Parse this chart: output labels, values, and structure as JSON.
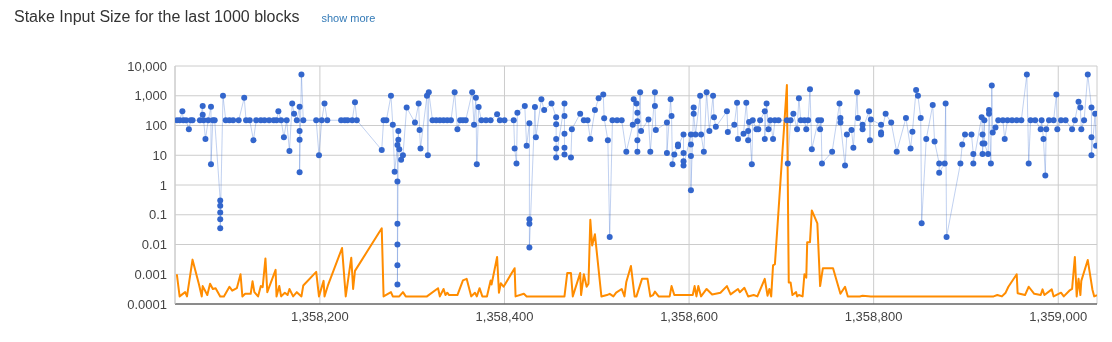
{
  "chart_data": {
    "type": "line",
    "title": "Stake Input Size for the last 1000 blocks",
    "annotations": [
      "show more"
    ],
    "log": "y",
    "grid": true,
    "xlim": [
      1358043,
      1359042
    ],
    "xticks": [
      {
        "value": 1358200,
        "label": "1,358,200"
      },
      {
        "value": 1358400,
        "label": "1,358,400"
      },
      {
        "value": 1358600,
        "label": "1,358,600"
      },
      {
        "value": 1358800,
        "label": "1,358,800"
      },
      {
        "value": 1359000,
        "label": "1,359,000"
      }
    ],
    "ylim": [
      0.0001,
      10000
    ],
    "yticks": [
      0.0001,
      0.001,
      0.01,
      0.1,
      1,
      10,
      100,
      {
        "value": 1000,
        "label": "1,000"
      },
      {
        "value": 10000,
        "label": "10,000"
      }
    ],
    "series": [
      {
        "color": "#3366cc",
        "marker": "circle",
        "x": [
          1358045,
          1358048,
          1358051,
          1358052,
          1358055,
          1358058,
          1358060,
          1358062,
          1358070,
          1358073,
          1358073,
          1358074,
          1358076,
          1358079,
          1358082,
          1358082,
          1358084,
          1358086,
          1358092,
          1358092,
          1358092,
          1358092,
          1358092,
          1358095,
          1358098,
          1358102,
          1358106,
          1358112,
          1358118,
          1358120,
          1358124,
          1358128,
          1358131,
          1358136,
          1358140,
          1358145,
          1358150,
          1358153,
          1358155,
          1358158,
          1358161,
          1358164,
          1358167,
          1358170,
          1358172,
          1358175,
          1358178,
          1358178,
          1358178,
          1358178,
          1358180,
          1358182,
          1358196,
          1358199,
          1358202,
          1358205,
          1358208,
          1358223,
          1358227,
          1358230,
          1358235,
          1358238,
          1358240,
          1358267,
          1358269,
          1358272,
          1358277,
          1358279,
          1358281,
          1358284,
          1358284,
          1358284,
          1358284,
          1358284,
          1358284,
          1358285,
          1358285,
          1358286,
          1358288,
          1358290,
          1358294,
          1358303,
          1358307,
          1358308,
          1358309,
          1358316,
          1358317,
          1358318,
          1358322,
          1358326,
          1358330,
          1358334,
          1358338,
          1358342,
          1358346,
          1358349,
          1358352,
          1358355,
          1358358,
          1358365,
          1358367,
          1358369,
          1358370,
          1358372,
          1358375,
          1358380,
          1358385,
          1358392,
          1358395,
          1358400,
          1358410,
          1358411,
          1358413,
          1358414,
          1358422,
          1358424,
          1358427,
          1358427,
          1358427,
          1358427,
          1358433,
          1358434,
          1358440,
          1358443,
          1358451,
          1358456,
          1358456,
          1358456,
          1358456,
          1358456,
          1358465,
          1358465,
          1358465,
          1358465,
          1358465,
          1358472,
          1358473,
          1358482,
          1358486,
          1358490,
          1358493,
          1358498,
          1358502,
          1358507,
          1358508,
          1358512,
          1358514,
          1358517,
          1358522,
          1358527,
          1358532,
          1358539,
          1358540,
          1358543,
          1358544,
          1358544,
          1358544,
          1358544,
          1358547,
          1358548,
          1358556,
          1358558,
          1358563,
          1358563,
          1358564,
          1358576,
          1358576,
          1358580,
          1358581,
          1358582,
          1358584,
          1358588,
          1358588,
          1358594,
          1358594,
          1358594,
          1358594,
          1358602,
          1358602,
          1358602,
          1358602,
          1358605,
          1358605,
          1358607,
          1358612,
          1358613,
          1358616,
          1358619,
          1358622,
          1358626,
          1358627,
          1358629,
          1358641,
          1358642,
          1358649,
          1358652,
          1358653,
          1358659,
          1358662,
          1358664,
          1358664,
          1358665,
          1358668,
          1358669,
          1358673,
          1358675,
          1358677,
          1358682,
          1358682,
          1358684,
          1358686,
          1358688,
          1358691,
          1358693,
          1358697,
          1358706,
          1358707,
          1358710,
          1358713,
          1358717,
          1358719,
          1358721,
          1358725,
          1358727,
          1358729,
          1358731,
          1358733,
          1358740,
          1358742,
          1358743,
          1358744,
          1358755,
          1358763,
          1358764,
          1358764,
          1358769,
          1358771,
          1358776,
          1358778,
          1358782,
          1358783,
          1358788,
          1358788,
          1358795,
          1358796,
          1358797,
          1358808,
          1358808,
          1358808,
          1358813,
          1358819,
          1358825,
          1358835,
          1358840,
          1358842,
          1358846,
          1358848,
          1358851,
          1358852,
          1358857,
          1358864,
          1358866,
          1358871,
          1358871,
          1358877,
          1358878,
          1358879,
          1358894,
          1358896,
          1358899,
          1358906,
          1358908,
          1358908,
          1358917,
          1358918,
          1358918,
          1358918,
          1358920,
          1358920,
          1358924,
          1358925,
          1358925,
          1358927,
          1358928,
          1358929,
          1358932,
          1358935,
          1358940,
          1358942,
          1358945,
          1358950,
          1358955,
          1358960,
          1358966,
          1358968,
          1358970,
          1358975,
          1358981,
          1358982,
          1358984,
          1358986,
          1358987,
          1358990,
          1358995,
          1358998,
          1358999,
          1359003,
          1359008,
          1359015,
          1359018,
          1359022,
          1359024,
          1359025,
          1359028,
          1359032,
          1359036,
          1359036,
          1359036,
          1359040,
          1359041
        ],
        "values": [
          150,
          150,
          300,
          150,
          150,
          75,
          150,
          150,
          150,
          450,
          230,
          150,
          35,
          150,
          430,
          5,
          150,
          150,
          0.3,
          0.2,
          0.12,
          0.07,
          0.035,
          1000,
          150,
          150,
          150,
          150,
          850,
          150,
          150,
          32,
          150,
          150,
          150,
          150,
          150,
          150,
          300,
          150,
          40,
          150,
          14,
          550,
          250,
          150,
          430,
          65,
          33,
          2.7,
          5200,
          150,
          150,
          10,
          150,
          550,
          150,
          150,
          150,
          150,
          150,
          600,
          150,
          15,
          150,
          150,
          1000,
          105,
          2.8,
          22,
          1.3,
          0.05,
          0.01,
          0.002,
          0.00045,
          65,
          33,
          16,
          7,
          10,
          400,
          125,
          550,
          70,
          17,
          1000,
          10,
          1300,
          150,
          150,
          150,
          150,
          150,
          150,
          1300,
          75,
          150,
          150,
          150,
          1300,
          105,
          850,
          5,
          420,
          150,
          150,
          150,
          240,
          150,
          150,
          150,
          17,
          5.3,
          270,
          450,
          21,
          120,
          0.07,
          0.05,
          0.008,
          420,
          40,
          760,
          330,
          550,
          190,
          110,
          35,
          17,
          8.4,
          550,
          210,
          53,
          18,
          10.5,
          8.4,
          75,
          250,
          150,
          150,
          35,
          330,
          820,
          1100,
          175,
          32,
          0.018,
          150,
          150,
          150,
          13,
          105,
          760,
          550,
          270,
          140,
          32,
          13,
          1300,
          65,
          160,
          13,
          1300,
          450,
          70,
          125,
          12,
          760,
          210,
          5,
          10.5,
          23,
          20,
          50,
          12,
          6.3,
          4.5,
          50,
          23,
          9.5,
          0.67,
          400,
          250,
          50,
          1000,
          50,
          13,
          1300,
          65,
          1000,
          190,
          90,
          300,
          60,
          105,
          580,
          35,
          53,
          580,
          65,
          32,
          130,
          5,
          150,
          75,
          75,
          150,
          300,
          35,
          550,
          75,
          150,
          35,
          150,
          150,
          150,
          5.3,
          150,
          250,
          75,
          820,
          150,
          150,
          75,
          150,
          1650,
          16,
          150,
          75,
          150,
          5.3,
          13,
          550,
          180,
          125,
          4.5,
          50,
          70,
          18,
          1300,
          180,
          105,
          75,
          300,
          32,
          160,
          105,
          58,
          50,
          250,
          125,
          13,
          180,
          17,
          62,
          1550,
          1000,
          180,
          0.052,
          35,
          490,
          29,
          5.3,
          2.6,
          5.3,
          550,
          0.018,
          5.3,
          23,
          50,
          50,
          11,
          5.3,
          190,
          50,
          25,
          11,
          150,
          25,
          11,
          250,
          330,
          5.3,
          2200,
          58,
          85,
          150,
          150,
          35,
          150,
          150,
          150,
          150,
          5200,
          5.3,
          150,
          150,
          75,
          150,
          35,
          2.1,
          75,
          150,
          150,
          1100,
          75,
          150,
          150,
          75,
          150,
          630,
          400,
          75,
          150,
          5200,
          400,
          40,
          10,
          250,
          21
        ]
      },
      {
        "color": "#ff8c00",
        "marker": "none",
        "x": [
          1358045,
          1358048,
          1358054,
          1358056,
          1358062,
          1358069,
          1358072,
          1358073,
          1358078,
          1358081,
          1358084,
          1358087,
          1358092,
          1358096,
          1358102,
          1358105,
          1358110,
          1358114,
          1358116,
          1358119,
          1358125,
          1358127,
          1358129,
          1358133,
          1358136,
          1358138,
          1358141,
          1358143,
          1358152,
          1358153,
          1358156,
          1358158,
          1358162,
          1358165,
          1358167,
          1358171,
          1358175,
          1358180,
          1358182,
          1358196,
          1358199,
          1358204,
          1358205,
          1358209,
          1358224,
          1358228,
          1358234,
          1358236,
          1358238,
          1358267,
          1358269,
          1358277,
          1358279,
          1358286,
          1358290,
          1358293,
          1358316,
          1358328,
          1358330,
          1358334,
          1358336,
          1358338,
          1358340,
          1358349,
          1358355,
          1358359,
          1358364,
          1358368,
          1358370,
          1358373,
          1358376,
          1358381,
          1358385,
          1358386,
          1358392,
          1358394,
          1358396,
          1358399,
          1358411,
          1358412,
          1358421,
          1358424,
          1358465,
          1358468,
          1358472,
          1358474,
          1358482,
          1358483,
          1358486,
          1358489,
          1358491,
          1358493,
          1358495,
          1358498,
          1358505,
          1358511,
          1358514,
          1358518,
          1358521,
          1358527,
          1358530,
          1358532,
          1358537,
          1358541,
          1358543,
          1358549,
          1358555,
          1358558,
          1358561,
          1358563,
          1358567,
          1358579,
          1358581,
          1358584,
          1358604,
          1358606,
          1358608,
          1358610,
          1358613,
          1358619,
          1358625,
          1358634,
          1358641,
          1358645,
          1358653,
          1358655,
          1358660,
          1358664,
          1358670,
          1358674,
          1358682,
          1358685,
          1358687,
          1358689,
          1358691,
          1358693,
          1358697,
          1358706,
          1358708,
          1358710,
          1358712,
          1358716,
          1358717,
          1358719,
          1358723,
          1358725,
          1358727,
          1358728,
          1358731,
          1358733,
          1358739,
          1358742,
          1358745,
          1358756,
          1358764,
          1358769,
          1358772,
          1358785,
          1358788,
          1358797,
          1358930,
          1358934,
          1358939,
          1358943,
          1358946,
          1358955,
          1358956,
          1358964,
          1358968,
          1358974,
          1358981,
          1358983,
          1358985,
          1358993,
          1358995,
          1359003,
          1359006,
          1359012,
          1359015,
          1359018,
          1359020,
          1359022,
          1359024,
          1359025,
          1359032,
          1359037,
          1359039,
          1359042
        ],
        "values": [
          0.001,
          0.00018,
          0.00025,
          0.00018,
          0.0031,
          0.00045,
          0.00018,
          0.0004,
          0.0002,
          0.00048,
          0.00032,
          0.00034,
          0.00018,
          0.00018,
          0.00038,
          0.00028,
          0.00034,
          0.001,
          0.00018,
          0.00022,
          0.00022,
          0.00058,
          0.00025,
          0.00018,
          0.0004,
          0.00037,
          0.0034,
          0.00025,
          0.0014,
          0.00018,
          0.0004,
          0.00018,
          0.00024,
          0.0002,
          0.00032,
          0.00018,
          0.00025,
          0.00018,
          0.00042,
          0.0012,
          0.00018,
          0.0006,
          0.00018,
          0.00045,
          0.0076,
          0.00018,
          0.0036,
          0.00032,
          0.0013,
          0.035,
          0.00018,
          0.00025,
          0.00018,
          0.00018,
          0.00025,
          0.00018,
          0.00018,
          0.00034,
          0.00018,
          0.00032,
          0.0002,
          0.00024,
          0.0002,
          0.0002,
          0.00062,
          0.0007,
          0.00018,
          0.00024,
          0.00018,
          0.00034,
          0.00018,
          0.00018,
          0.00062,
          0.00045,
          0.0038,
          0.00024,
          0.0005,
          0.00038,
          0.0016,
          0.00018,
          0.00022,
          0.00018,
          0.00018,
          0.0011,
          0.0011,
          0.00018,
          0.0011,
          0.0002,
          0.001,
          0.00038,
          0.00048,
          0.068,
          0.0093,
          0.022,
          0.00018,
          0.0002,
          0.00022,
          0.00018,
          0.00024,
          0.00032,
          0.00018,
          0.00055,
          0.0019,
          0.00018,
          0.00018,
          0.0007,
          0.0007,
          0.00018,
          0.0002,
          0.00026,
          0.00018,
          0.00018,
          0.0004,
          0.0002,
          0.0002,
          0.0004,
          0.00018,
          0.0004,
          0.00018,
          0.00032,
          0.00021,
          0.00024,
          0.0004,
          0.00021,
          0.00032,
          0.00025,
          0.00035,
          0.00018,
          0.0002,
          0.00018,
          0.0007,
          0.00019,
          0.00032,
          0.00018,
          0.002,
          0.0022,
          0.15,
          2300,
          0.00053,
          0.00053,
          0.0002,
          0.00025,
          0.00018,
          0.0002,
          0.00018,
          0.001,
          0.00077,
          0.012,
          0.012,
          0.14,
          0.051,
          0.0004,
          0.0016,
          0.0016,
          0.00022,
          0.00038,
          0.00018,
          0.00018,
          0.00019,
          0.00018,
          0.00018,
          0.0002,
          0.00018,
          0.00024,
          0.00038,
          0.001,
          0.00023,
          0.0002,
          0.00038,
          0.00022,
          0.0002,
          0.00031,
          0.0002,
          0.00031,
          0.00018,
          0.00024,
          0.00018,
          0.00028,
          0.00032,
          0.0038,
          0.00018,
          0.0007,
          0.0002,
          0.0006,
          0.003,
          0.00031,
          0.00018,
          0.0002
        ]
      }
    ]
  }
}
